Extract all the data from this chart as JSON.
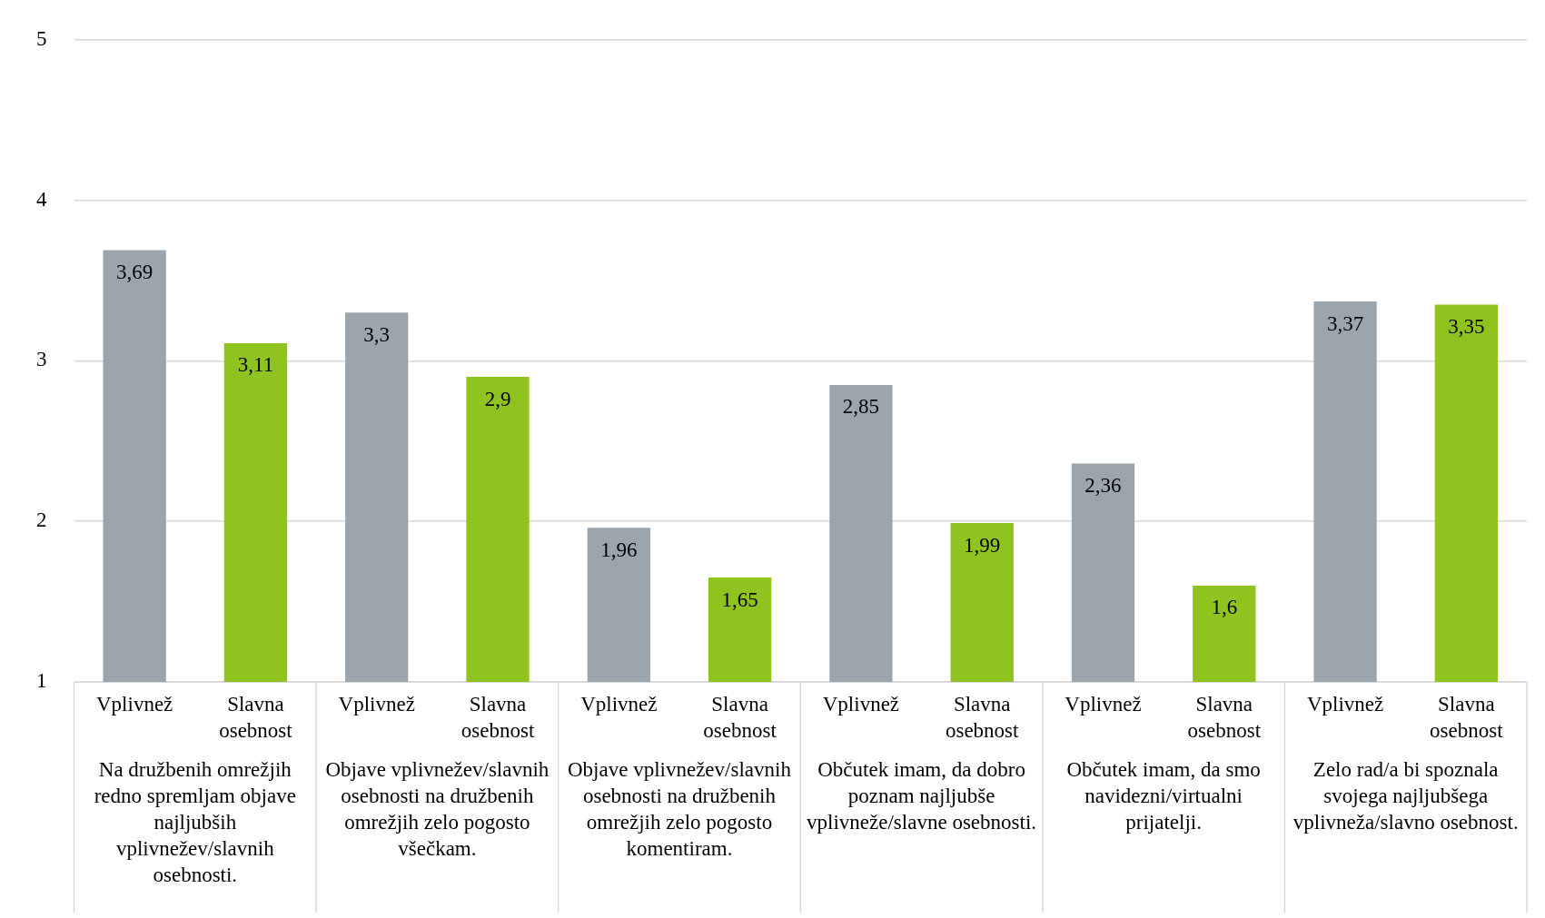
{
  "chart_data": {
    "type": "bar",
    "categories": [
      "Na družbenih omrežjih redno spremljam objave najljubših vplivnežev/slavnih osebnosti.",
      "Objave vplivnežev/slavnih osebnosti na družbenih omrežjih zelo pogosto všečkam.",
      "Objave vplivnežev/slavnih osebnosti na družbenih omrežjih zelo pogosto komentiram.",
      "Občutek imam, da dobro poznam najljubše vplivneže/slavne osebnosti.",
      "Občutek imam, da smo navidezni/virtualni prijatelji.",
      "Zelo rad/a bi spoznala svojega najljubšega vplivneža/slavno osebnost."
    ],
    "series": [
      {
        "name": "Vplivnež",
        "color": "#9ba5ad",
        "values": [
          3.69,
          3.3,
          1.96,
          2.85,
          2.36,
          3.37
        ],
        "value_labels": [
          "3,69",
          "3,3",
          "1,96",
          "2,85",
          "2,36",
          "3,37"
        ]
      },
      {
        "name": "Slavna osebnost",
        "color": "#8fc31f",
        "values": [
          3.11,
          2.9,
          1.65,
          1.99,
          1.6,
          3.35
        ],
        "value_labels": [
          "3,11",
          "2,9",
          "1,65",
          "1,99",
          "1,6",
          "3,35"
        ]
      }
    ],
    "ylim": [
      1,
      5
    ],
    "yticks": [
      1,
      2,
      3,
      4,
      5
    ],
    "grid": "y",
    "legend": false
  }
}
